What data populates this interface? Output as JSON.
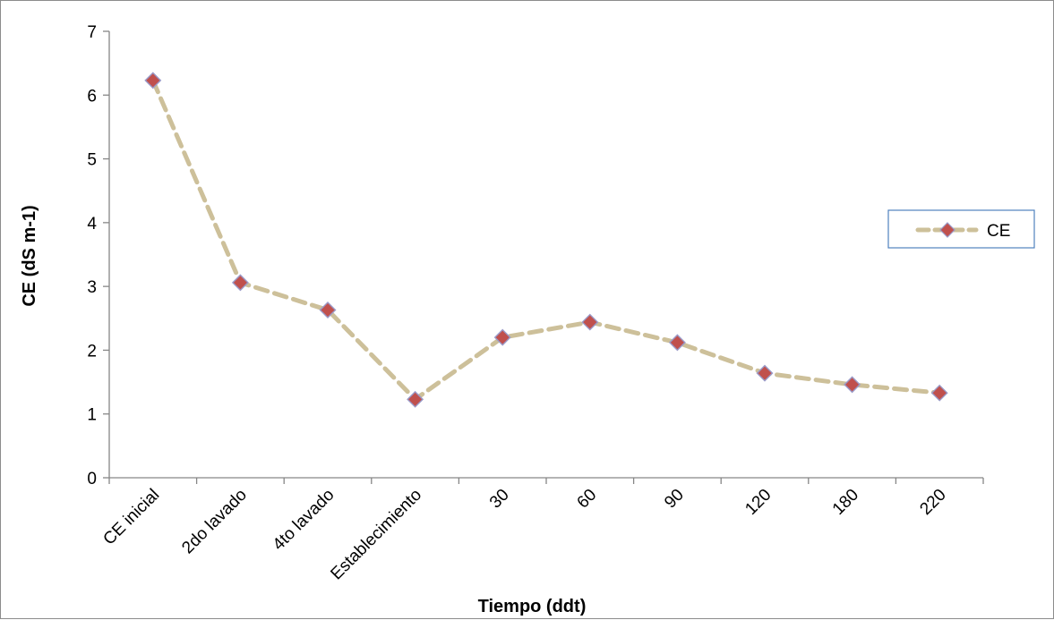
{
  "chart_data": {
    "type": "line",
    "title": "",
    "xlabel": "Tiempo (ddt)",
    "ylabel": "CE (dS m-1)",
    "categories": [
      "CE inicial",
      "2do lavado",
      "4to lavado",
      "Establecimiento",
      "30",
      "60",
      "90",
      "120",
      "180",
      "220"
    ],
    "series": [
      {
        "name": "CE",
        "values": [
          6.23,
          3.06,
          2.63,
          1.23,
          2.2,
          2.44,
          2.12,
          1.64,
          1.46,
          1.33
        ]
      }
    ],
    "ylim": [
      0,
      7
    ],
    "yticks": [
      "0",
      "1",
      "2",
      "3",
      "4",
      "5",
      "6",
      "7"
    ],
    "grid": false,
    "legend_position": "right",
    "colors": {
      "line": "#cdc09a",
      "marker_fill": "#c0504d",
      "marker_stroke": "#9a9ac8",
      "axis": "#868686",
      "legend_border": "#4f81bd"
    }
  }
}
